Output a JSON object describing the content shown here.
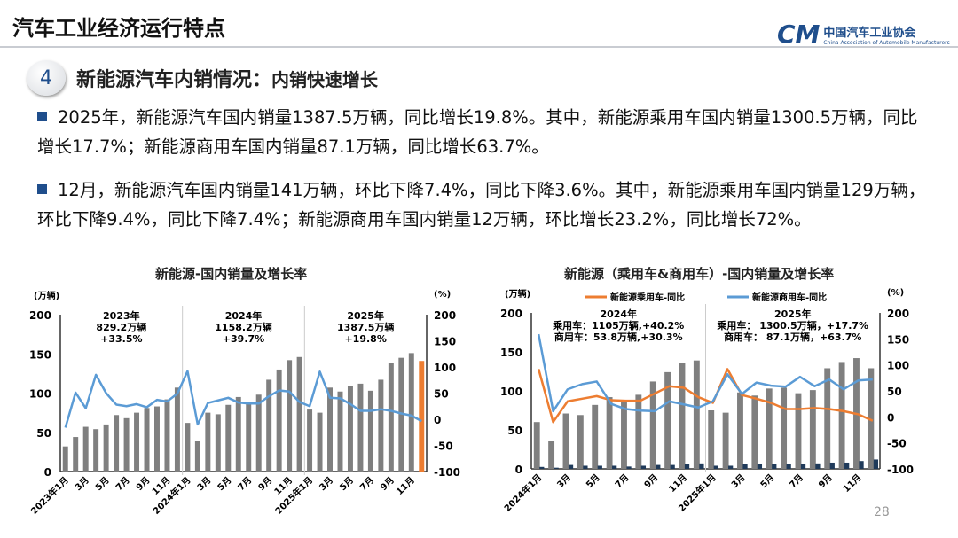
{
  "header": {
    "title": "汽车工业经济运行特点",
    "logo_cn": "中国汽车工业协会",
    "logo_en": "China Association of Automobile Manufacturers",
    "logo_mark": "CM"
  },
  "section": {
    "number": "4",
    "heading": "新能源汽车内销情况：",
    "subheading": "内销快速增长"
  },
  "bullets": [
    "2025年，新能源汽车国内销量1387.5万辆，同比增长19.8%。其中，新能源乘用车国内销量1300.5万辆，同比增长17.7%；新能源商用车国内销量87.1万辆，同比增长63.7%。",
    "12月，新能源汽车国内销量141万辆，环比下降7.4%，同比下降3.6%。其中，新能源乘用车国内销量129万辆，环比下降9.4%，同比下降7.4%；新能源商用车国内销量12万辆，环比增长23.2%，同比增长72%。"
  ],
  "page_number": "28",
  "colors": {
    "brand": "#1f4e8c",
    "bar": "#7f7f7f",
    "highlight": "#ed7d31",
    "line_blue": "#5b9bd5",
    "line_orange": "#ed7d31",
    "bar_dark": "#1f3a5a"
  },
  "chart_data": [
    {
      "type": "bar+line",
      "title": "新能源-国内销量及增长率",
      "ylabel": "(万辆)",
      "y2label": "(%)",
      "ylim": [
        0,
        200
      ],
      "y2lim": [
        -100,
        200
      ],
      "yticks": [
        "0",
        "50",
        "100",
        "150",
        "200"
      ],
      "y2ticks": [
        "-100",
        "-50",
        "0",
        "50",
        "100",
        "150",
        "200"
      ],
      "xticks": [
        "2023年1月",
        "3月",
        "5月",
        "7月",
        "9月",
        "11月",
        "2024年1月",
        "3月",
        "5月",
        "7月",
        "9月",
        "11月",
        "2025年1月",
        "3月",
        "5月",
        "7月",
        "9月",
        "11月"
      ],
      "months": 36,
      "annotations": [
        {
          "year": "2023年",
          "volume": "829.2万辆",
          "growth": "+33.5%"
        },
        {
          "year": "2024年",
          "volume": "1158.2万辆",
          "growth": "+39.7%"
        },
        {
          "year": "2025年",
          "volume": "1387.5万辆",
          "growth": "+19.8%"
        }
      ],
      "series": [
        {
          "kind": "bar",
          "axis": "left",
          "values": [
            32,
            44,
            57,
            54,
            60,
            72,
            68,
            75,
            81,
            83,
            92,
            107,
            62,
            39,
            75,
            73,
            85,
            95,
            87,
            98,
            117,
            130,
            142,
            146,
            79,
            75,
            107,
            102,
            109,
            112,
            103,
            117,
            138,
            145,
            151,
            141
          ],
          "highlight_last": true
        },
        {
          "kind": "line",
          "axis": "right",
          "values": [
            -16,
            51,
            21,
            85,
            50,
            28,
            25,
            29,
            23,
            37,
            34,
            49,
            92,
            -10,
            31,
            36,
            41,
            32,
            30,
            30,
            44,
            55,
            53,
            33,
            25,
            91,
            41,
            40,
            29,
            16,
            16,
            19,
            16,
            11,
            7,
            -3.6
          ]
        }
      ]
    },
    {
      "type": "bar+line",
      "title": "新能源（乘用车&商用车）-国内销量及增长率",
      "ylabel": "(万辆)",
      "y2label": "(%)",
      "ylim": [
        0,
        200
      ],
      "y2lim": [
        -100,
        200
      ],
      "yticks": [
        "0",
        "50",
        "100",
        "150",
        "200"
      ],
      "y2ticks": [
        "-100",
        "-50",
        "0",
        "50",
        "100",
        "150",
        "200"
      ],
      "xticks": [
        "2024年1月",
        "3月",
        "5月",
        "7月",
        "9月",
        "11月",
        "2025年1月",
        "3月",
        "5月",
        "7月",
        "9月",
        "11月"
      ],
      "months": 24,
      "annotations": [
        {
          "year": "2024年",
          "line1": "乘用车：1105万辆,+40.2%",
          "line2": "商用车：53.8万辆,+30.3%"
        },
        {
          "year": "2025年",
          "line1": "乘用车：  1300.5万辆，+17.7%",
          "line2": "商用车：  87.1万辆，+63.7%"
        }
      ],
      "series": [
        {
          "kind": "bar",
          "axis": "left",
          "values": [
            60,
            36,
            71,
            69,
            82,
            92,
            86,
            95,
            112,
            124,
            136,
            139,
            75,
            72,
            98,
            94,
            103,
            104,
            97,
            101,
            129,
            137,
            142,
            129
          ]
        },
        {
          "kind": "bar",
          "axis": "left",
          "values": [
            2.5,
            1.5,
            5,
            4,
            4,
            4,
            3,
            4,
            5,
            5,
            6,
            7,
            4,
            4,
            6,
            6,
            6,
            6,
            6,
            7,
            8,
            8,
            10,
            12
          ]
        },
        {
          "kind": "line",
          "name": "新能源乘用车-同比",
          "axis": "right",
          "color": "#ed7d31",
          "values": [
            92,
            -10,
            30,
            35,
            40,
            32,
            31,
            31,
            45,
            59,
            56,
            38,
            27,
            92,
            42,
            35,
            27,
            15,
            15,
            17,
            15,
            11,
            5,
            -7.4
          ]
        },
        {
          "kind": "line",
          "name": "新能源商用车-同比",
          "axis": "right",
          "color": "#5b9bd5",
          "values": [
            159,
            11,
            53,
            63,
            68,
            25,
            15,
            12,
            11,
            30,
            24,
            18,
            30,
            82,
            44,
            66,
            60,
            58,
            77,
            59,
            72,
            53,
            70,
            72
          ]
        }
      ]
    }
  ]
}
